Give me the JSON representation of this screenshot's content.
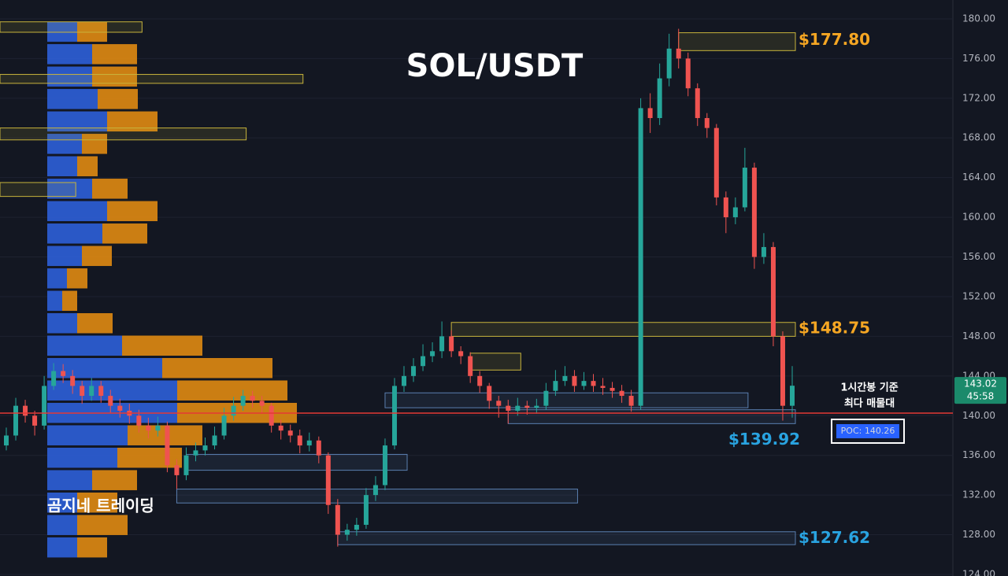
{
  "chart_data": {
    "type": "candlestick",
    "title": "SOL/USDT",
    "watermark": "곰지네 트레이딩",
    "ylim": [
      123.84,
      181.9
    ],
    "yticks": [
      {
        "value": 124,
        "label": "124.00"
      },
      {
        "value": 128,
        "label": "128.00"
      },
      {
        "value": 132,
        "label": "132.00"
      },
      {
        "value": 136,
        "label": "136.00"
      },
      {
        "value": 140,
        "label": "140.00"
      },
      {
        "value": 144,
        "label": "144.00"
      },
      {
        "value": 148,
        "label": "148.00"
      },
      {
        "value": 152,
        "label": "152.00"
      },
      {
        "value": 156,
        "label": "156.00"
      },
      {
        "value": 160,
        "label": "160.00"
      },
      {
        "value": 164,
        "label": "164.00"
      },
      {
        "value": 168,
        "label": "168.00"
      },
      {
        "value": 172,
        "label": "172.00"
      },
      {
        "value": 176,
        "label": "176.00"
      },
      {
        "value": 180,
        "label": "180.00"
      }
    ],
    "grid": true,
    "up_color": "#26a69a",
    "down_color": "#ef5350",
    "ohlc": [
      [
        137,
        138.8,
        136.5,
        138
      ],
      [
        138,
        141.8,
        137.5,
        141
      ],
      [
        141,
        141.6,
        139.3,
        140
      ],
      [
        140,
        140.5,
        138,
        139
      ],
      [
        139,
        144,
        138.6,
        143
      ],
      [
        143,
        145.3,
        142.6,
        144.5
      ],
      [
        144.5,
        145.2,
        143.3,
        144
      ],
      [
        144,
        144.6,
        142.2,
        143
      ],
      [
        143,
        143.5,
        141.2,
        142
      ],
      [
        142,
        143.8,
        141.5,
        143
      ],
      [
        143,
        143.5,
        141.3,
        142
      ],
      [
        142,
        142.6,
        140.3,
        141
      ],
      [
        141,
        141.7,
        139.8,
        140.5
      ],
      [
        140.5,
        141.2,
        139.2,
        140
      ],
      [
        140,
        140.6,
        138.3,
        139
      ],
      [
        139,
        139.8,
        137.7,
        138.5
      ],
      [
        138.5,
        139.9,
        137.9,
        139
      ],
      [
        139,
        139.4,
        134.3,
        135
      ],
      [
        135,
        135.6,
        132.6,
        134
      ],
      [
        134,
        136.8,
        133.5,
        136
      ],
      [
        136,
        137.3,
        135.4,
        136.5
      ],
      [
        136.5,
        137.8,
        136,
        137
      ],
      [
        137,
        138.9,
        136.6,
        138
      ],
      [
        138,
        140.8,
        137.6,
        140
      ],
      [
        140,
        141.9,
        139.5,
        141
      ],
      [
        141,
        142.6,
        140.5,
        142
      ],
      [
        142,
        142.5,
        140.8,
        141.5
      ],
      [
        141.5,
        142,
        140.2,
        141
      ],
      [
        141,
        141.3,
        138.3,
        139
      ],
      [
        139,
        139.6,
        137.6,
        138.5
      ],
      [
        138.5,
        139.1,
        137.3,
        138
      ],
      [
        138,
        138.6,
        136.2,
        137
      ],
      [
        137,
        138.3,
        136.4,
        137.5
      ],
      [
        137.5,
        137.9,
        135.2,
        136
      ],
      [
        136,
        136.3,
        130.1,
        131
      ],
      [
        131,
        131.6,
        126.8,
        128
      ],
      [
        128,
        129.1,
        127.4,
        128.5
      ],
      [
        128.5,
        129.7,
        127.9,
        129
      ],
      [
        129,
        132.7,
        128.6,
        132
      ],
      [
        132,
        133.9,
        131.4,
        133
      ],
      [
        133,
        137.7,
        132.5,
        137
      ],
      [
        137,
        143.8,
        136.6,
        143
      ],
      [
        143,
        145,
        142.4,
        144
      ],
      [
        144,
        145.8,
        143.4,
        145
      ],
      [
        145,
        147.2,
        144.5,
        146
      ],
      [
        146,
        147.4,
        145.4,
        146.5
      ],
      [
        146.5,
        149.5,
        145.8,
        148
      ],
      [
        148,
        148.6,
        145.9,
        146.5
      ],
      [
        146.5,
        147,
        145.2,
        146
      ],
      [
        146,
        146.4,
        143.3,
        144
      ],
      [
        144,
        144.5,
        142.3,
        143
      ],
      [
        143,
        143.3,
        140.7,
        141.5
      ],
      [
        141.5,
        142,
        139.8,
        141
      ],
      [
        141,
        141.6,
        139.2,
        140.5
      ],
      [
        140.5,
        141.8,
        140,
        141
      ],
      [
        141,
        141.5,
        140.1,
        140.8
      ],
      [
        140.8,
        141.7,
        140.2,
        141
      ],
      [
        141,
        143.3,
        140.6,
        142.5
      ],
      [
        142.5,
        144.6,
        142,
        143.5
      ],
      [
        143.5,
        145,
        143,
        144
      ],
      [
        144,
        144.6,
        142.4,
        143
      ],
      [
        143,
        144.4,
        142.6,
        143.5
      ],
      [
        143.5,
        144.2,
        142.4,
        143
      ],
      [
        143,
        143.8,
        142.1,
        142.8
      ],
      [
        142.8,
        143.4,
        141.8,
        142.5
      ],
      [
        142.5,
        143.1,
        141.3,
        142
      ],
      [
        142,
        142.6,
        140.4,
        141
      ],
      [
        141,
        172,
        140.6,
        171
      ],
      [
        171,
        172.5,
        168.5,
        170
      ],
      [
        170,
        175.5,
        169.3,
        174
      ],
      [
        174,
        178.5,
        173.2,
        177
      ],
      [
        177,
        179,
        175,
        176
      ],
      [
        176,
        176.6,
        172.2,
        173
      ],
      [
        173,
        173.5,
        169.2,
        170
      ],
      [
        170,
        170.5,
        168,
        169
      ],
      [
        169,
        169.4,
        161.2,
        162
      ],
      [
        162,
        162.6,
        158.4,
        160
      ],
      [
        160,
        162,
        159.3,
        161
      ],
      [
        161,
        167,
        160.6,
        165
      ],
      [
        165,
        165.5,
        154.8,
        156
      ],
      [
        156,
        158.4,
        155.3,
        157
      ],
      [
        157,
        157.5,
        147,
        148
      ],
      [
        148,
        148.5,
        139.5,
        141
      ],
      [
        141,
        145,
        139.8,
        143.02
      ]
    ],
    "last_price": 143.02,
    "countdown": "45:58",
    "profile": {
      "prices": [
        178.7,
        176.44,
        174.18,
        171.92,
        169.66,
        167.4,
        165.14,
        162.88,
        160.62,
        158.36,
        156.1,
        153.84,
        151.58,
        149.32,
        147.06,
        144.8,
        142.54,
        140.28,
        138.02,
        135.76,
        133.5,
        131.24,
        128.98,
        126.72
      ],
      "buy": [
        38,
        57,
        57,
        64,
        76,
        44,
        38,
        57,
        76,
        70,
        44,
        25,
        19,
        38,
        95,
        146,
        165,
        165,
        102,
        89,
        57,
        38,
        38,
        38
      ],
      "sell": [
        38,
        57,
        57,
        51,
        64,
        32,
        26,
        45,
        64,
        57,
        38,
        26,
        19,
        45,
        102,
        140,
        140,
        152,
        95,
        82,
        57,
        51,
        64,
        38
      ],
      "buy_color": "#2d5fd8",
      "sell_color": "#e08a12"
    },
    "zones": [
      {
        "low": 176.8,
        "high": 178.6,
        "start": 71,
        "end": 83,
        "color": "#c8b43c"
      },
      {
        "low": 148.0,
        "high": 149.4,
        "start": 47,
        "end": 83,
        "color": "#c8b43c"
      },
      {
        "low": 144.6,
        "high": 146.3,
        "start": 49,
        "end": 54,
        "color": "#c8b43c"
      },
      {
        "low": 140.8,
        "high": 142.3,
        "start": 40,
        "end": 78,
        "color": "#5a7fb0"
      },
      {
        "low": 139.2,
        "high": 140.6,
        "start": 53,
        "end": 83,
        "color": "#5a7fb0"
      },
      {
        "low": 127.0,
        "high": 128.3,
        "start": 35,
        "end": 83,
        "color": "#5a7fb0"
      },
      {
        "low": 134.5,
        "high": 136.1,
        "start": 19,
        "end": 42,
        "color": "#5a7fb0"
      },
      {
        "low": 131.2,
        "high": 132.6,
        "start": 18,
        "end": 60,
        "color": "#5a7fb0"
      },
      {
        "low": 178.65,
        "high": 179.7,
        "start": -1,
        "end": 14,
        "color": "#c8b43c"
      },
      {
        "low": 173.5,
        "high": 174.4,
        "start": -1,
        "end": 31,
        "color": "#c8b43c"
      },
      {
        "low": 167.8,
        "high": 169.0,
        "start": -1,
        "end": 25,
        "color": "#c8b43c"
      },
      {
        "low": 162.1,
        "high": 163.5,
        "start": -1,
        "end": 7,
        "color": "#c8b43c"
      }
    ],
    "poc": {
      "value": 140.26,
      "label": "POC: 140.26",
      "color": "#e53935"
    },
    "poc_note": [
      "1시간봉 기준",
      "최다 매물대"
    ],
    "price_labels": [
      {
        "value": 177.8,
        "label": "$177.80",
        "color": "#f5a623"
      },
      {
        "value": 148.75,
        "label": "$148.75",
        "color": "#f5a623"
      },
      {
        "value": 139.92,
        "label": "$139.92",
        "color": "#29a3e0"
      },
      {
        "value": 127.62,
        "label": "$127.62",
        "color": "#29a3e0"
      }
    ]
  }
}
